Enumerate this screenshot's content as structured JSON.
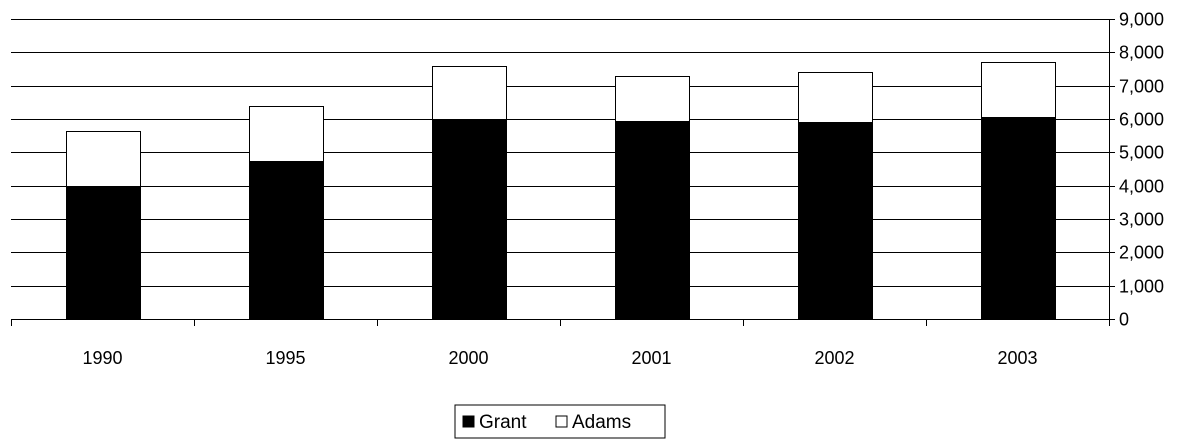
{
  "chart_data": {
    "type": "bar",
    "stacked": true,
    "categories": [
      "1990",
      "1995",
      "2000",
      "2001",
      "2002",
      "2003"
    ],
    "series": [
      {
        "name": "Grant",
        "color": "#000000",
        "values": [
          4000,
          4750,
          6000,
          5950,
          5900,
          6050
        ]
      },
      {
        "name": "Adams",
        "color": "#ffffff",
        "values": [
          1650,
          1650,
          1600,
          1350,
          1500,
          1650
        ]
      }
    ],
    "ylim": [
      0,
      9000
    ],
    "y_ticks": [
      "0",
      "1,000",
      "2,000",
      "3,000",
      "4,000",
      "5,000",
      "6,000",
      "7,000",
      "8,000",
      "9,000"
    ],
    "y_axis_side": "right",
    "grid": true,
    "legend": {
      "placement": "bottom",
      "entries": [
        "Grant",
        "Adams"
      ]
    }
  }
}
